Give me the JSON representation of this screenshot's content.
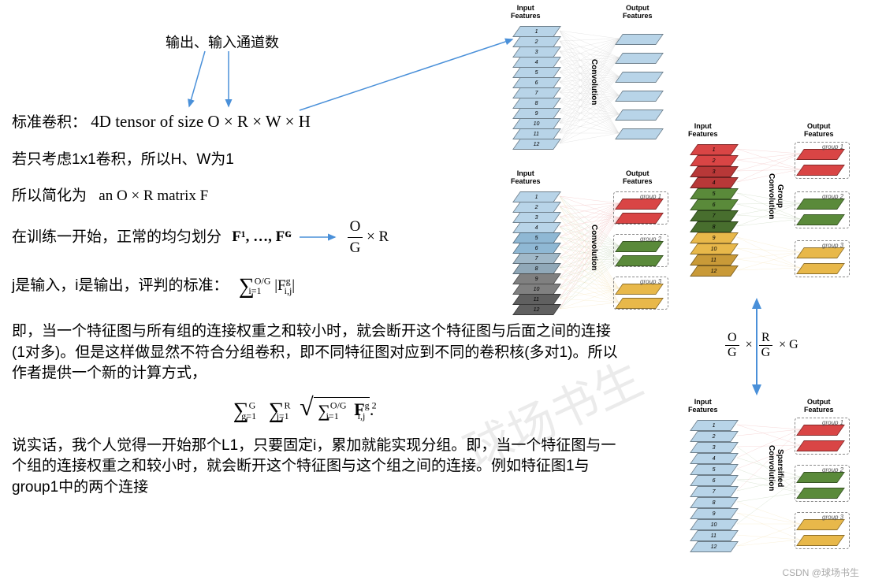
{
  "annotation": {
    "channels": "输出、输入通道数"
  },
  "lines": {
    "l1_prefix": "标准卷积：",
    "l1_formula": "4D tensor of size O × R × W × H",
    "l2": "若只考虑1x1卷积，所以H、W为1",
    "l3_prefix": "所以简化为",
    "l3_formula": "an O × R matrix F",
    "l4_prefix": "在训练一开始，正常的均匀划分",
    "l4_formula": "F¹, …, Fᴳ",
    "l4_result": " × R",
    "l5_prefix": "j是输入，i是输出，评判的标准：",
    "para1": "即，当一个特征图与所有组的连接权重之和较小时，就会断开这个特征图与后面之间的连接(1对多)。但是这样做显然不符合分组卷积，即不同特征图对应到不同的卷积核(多对1)。所以作者提供一个新的计算方式，",
    "para2": "说实话，我个人觉得一开始那个L1，只要固定i，累加就能实现分组。即，当一个特征图与一个组的连接权重之和较小时，就会断开这个特征图与这个组之间的连接。例如特征图1与group1中的两个连接"
  },
  "formulas": {
    "sum1_limits": "O/G",
    "sum1_sub": "i=1",
    "sum1_body": "|F",
    "sum1_sup": "g",
    "sum1_idx": "i,j",
    "sum1_end": "|",
    "big_g1_top": "G",
    "big_g1_sub": "g=1",
    "big_g2_top": "R",
    "big_g2_sub": "j=1",
    "big_g3_top": "O/G",
    "big_g3_sub": "i=1",
    "big_body": "F",
    "big_sup": "g  2",
    "big_idx": "i,j",
    "big_end": ".",
    "frac_O": "O",
    "frac_G": "G",
    "frac_R": "R",
    "times": "×",
    "G": "G"
  },
  "diagrams": {
    "input_label": "Input\nFeatures",
    "output_label": "Output\nFeatures",
    "conv_label": "Convolution",
    "group_conv_label": "Group\nConvolution",
    "sparse_conv_label": "Sparsified\nConvolution",
    "group1": "group 1",
    "group2": "group 2",
    "group3": "group 3",
    "colors": {
      "lightblue": "#b8d4e8",
      "lightblue_dark": "#8fb8d4",
      "red": "#d94545",
      "red_dark": "#b83838",
      "green": "#5a8a3a",
      "green_dark": "#486e2e",
      "yellow": "#e8b84a",
      "yellow_dark": "#c99a38",
      "gray": "#808080",
      "gray_dark": "#606060"
    },
    "numbers": [
      "1",
      "2",
      "3",
      "4",
      "5",
      "6",
      "7",
      "8",
      "9",
      "10",
      "11",
      "12"
    ]
  },
  "side_formula": {
    "part1_num": "O",
    "part1_den": "G",
    "times": "×",
    "part2_num": "R",
    "part2_den": "G",
    "tail": "× G"
  },
  "credit": "CSDN @球场书生",
  "watermark": "球场书生"
}
